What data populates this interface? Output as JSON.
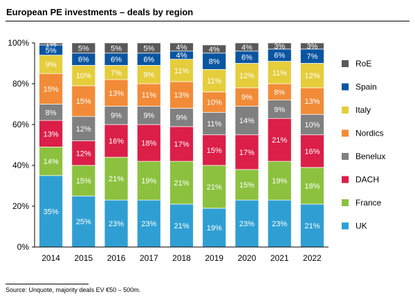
{
  "title": "European PE investments – deals by region",
  "source": "Source:  Unquote, majority deals EV €50 – 500m.",
  "colors": {
    "UK": "#2f9fd3",
    "France": "#8cc13f",
    "DACH": "#db1f48",
    "Benelux": "#808080",
    "Nordics": "#f28b37",
    "Italy": "#e5cd3c",
    "Spain": "#0a55a1",
    "RoE": "#595959"
  },
  "chart_data": {
    "type": "bar",
    "stacked": true,
    "categories": [
      "2014",
      "2015",
      "2016",
      "2017",
      "2018",
      "2019",
      "2020",
      "2021",
      "2022"
    ],
    "y_ticks": [
      "0%",
      "20%",
      "40%",
      "60%",
      "80%",
      "100%"
    ],
    "ylim": [
      0,
      100
    ],
    "legend_position": "right",
    "series": [
      {
        "name": "UK",
        "values": [
          35,
          25,
          23,
          23,
          21,
          19,
          23,
          23,
          21
        ],
        "labels": [
          "35%",
          "25%",
          "23%",
          "23%",
          "21%",
          "19%",
          "23%",
          "23%",
          "21%"
        ]
      },
      {
        "name": "France",
        "values": [
          14,
          15,
          21,
          19,
          21,
          21,
          15,
          19,
          18
        ],
        "labels": [
          "14%",
          "15%",
          "21%",
          "19%",
          "21%",
          "21%",
          "15%",
          "19%",
          "18%"
        ]
      },
      {
        "name": "DACH",
        "values": [
          13,
          12,
          16,
          18,
          17,
          15,
          17,
          21,
          16
        ],
        "labels": [
          "13%",
          "12%",
          "16%",
          "18%",
          "17%",
          "15%",
          "17%",
          "21%",
          "16%"
        ]
      },
      {
        "name": "Benelux",
        "values": [
          8,
          12,
          9,
          9,
          9,
          11,
          14,
          9,
          10
        ],
        "labels": [
          "8%",
          "12%",
          "9%",
          "9%",
          "9%",
          "11%",
          "14%",
          "9%",
          "10%"
        ]
      },
      {
        "name": "Nordics",
        "values": [
          15,
          15,
          13,
          11,
          13,
          10,
          9,
          8,
          13
        ],
        "labels": [
          "15%",
          "15%",
          "13%",
          "11%",
          "13%",
          "10%",
          "9%",
          "8%",
          "13%"
        ]
      },
      {
        "name": "Italy",
        "values": [
          9,
          10,
          7,
          9,
          11,
          11,
          12,
          11,
          12
        ],
        "labels": [
          "9%",
          "10%",
          "7%",
          "9%",
          "11%",
          "11%",
          "12%",
          "11%",
          "12%"
        ]
      },
      {
        "name": "Spain",
        "values": [
          5,
          6,
          6,
          6,
          4,
          8,
          6,
          6,
          7
        ],
        "labels": [
          "5%",
          "6%",
          "6%",
          "6%",
          "4%",
          "8%",
          "6%",
          "6%",
          "7%"
        ]
      },
      {
        "name": "RoE",
        "values": [
          1,
          5,
          5,
          5,
          4,
          4,
          4,
          3,
          3
        ],
        "labels": [
          "1%",
          "5%",
          "5%",
          "5%",
          "4%",
          "4%",
          "4%",
          "3%",
          "3%"
        ]
      }
    ]
  }
}
